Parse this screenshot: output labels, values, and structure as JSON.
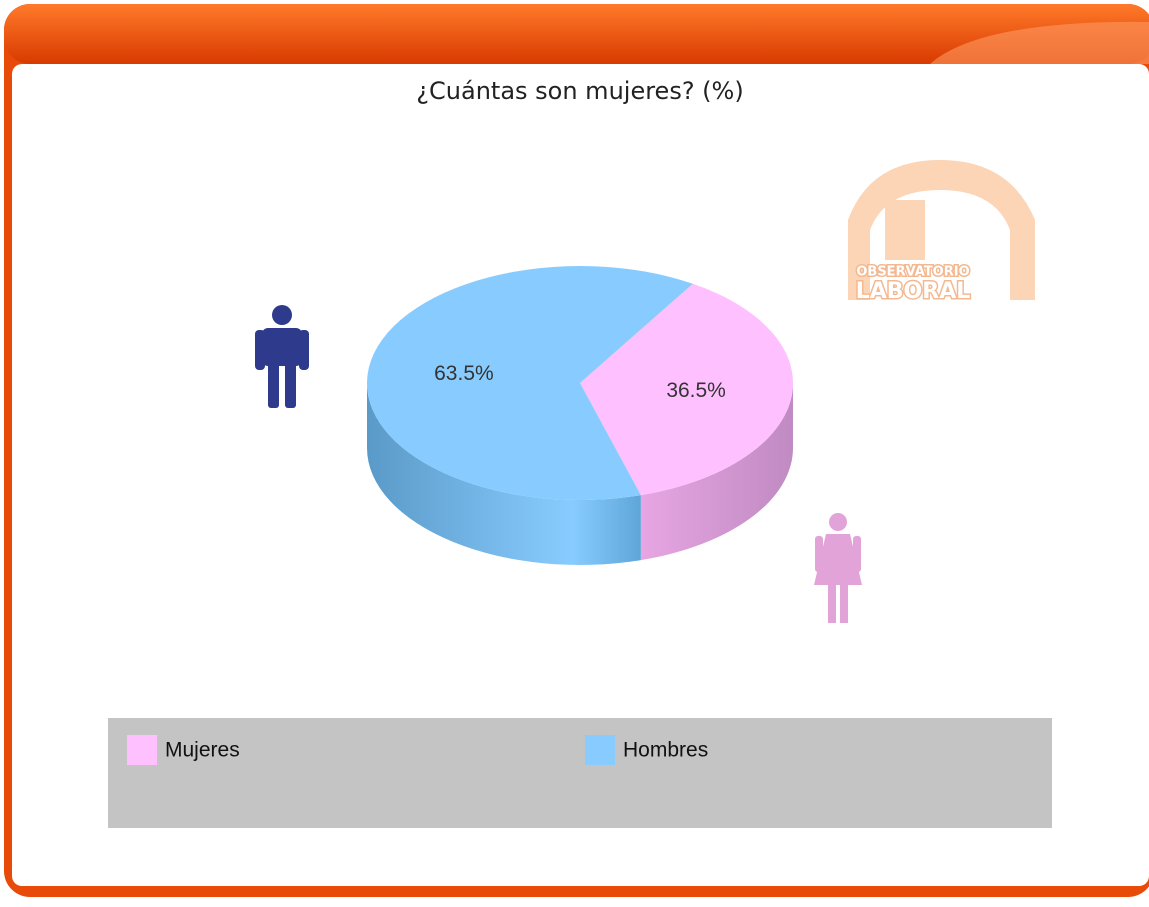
{
  "chart_data": {
    "type": "pie3d",
    "title": "¿Cuántas son mujeres? (%)",
    "categories": [
      "Mujeres",
      "Hombres"
    ],
    "values": [
      36.5,
      63.5
    ],
    "value_labels": [
      "36.5%",
      "63.5%"
    ],
    "colors": [
      "#ffc0ff",
      "#88ccff"
    ],
    "legend": "bottom"
  },
  "logo": {
    "line1": "OBSERVATORIO",
    "line2": "LABORAL"
  }
}
